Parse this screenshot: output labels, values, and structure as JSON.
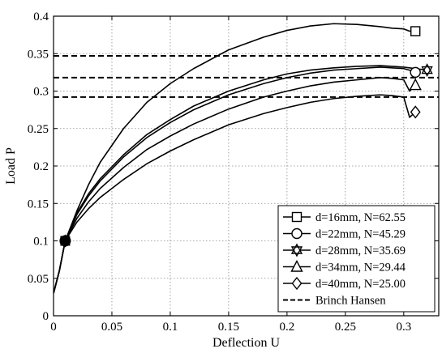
{
  "chart_data": {
    "type": "line",
    "xlabel": "Deflection U",
    "ylabel": "Load P",
    "xlim": [
      0,
      0.33
    ],
    "ylim": [
      0,
      0.4
    ],
    "xticks": [
      "0",
      "0.05",
      "0.1",
      "0.15",
      "0.2",
      "0.25",
      "0.3"
    ],
    "yticks": [
      "0",
      "0.05",
      "0.1",
      "0.15",
      "0.2",
      "0.25",
      "0.3",
      "0.35",
      "0.4"
    ],
    "grid": true,
    "legend_position": "bottom-right",
    "series": [
      {
        "name": "d=16mm, N=62.55",
        "marker": "square",
        "x": [
          0,
          0.005,
          0.01,
          0.02,
          0.03,
          0.04,
          0.06,
          0.08,
          0.1,
          0.12,
          0.15,
          0.18,
          0.2,
          0.22,
          0.24,
          0.26,
          0.28,
          0.29,
          0.3,
          0.305,
          0.31
        ],
        "y": [
          0.03,
          0.06,
          0.1,
          0.14,
          0.175,
          0.205,
          0.25,
          0.285,
          0.31,
          0.33,
          0.355,
          0.372,
          0.381,
          0.387,
          0.39,
          0.389,
          0.386,
          0.384,
          0.383,
          0.38,
          0.38
        ]
      },
      {
        "name": "d=22mm, N=45.29",
        "marker": "circle",
        "x": [
          0,
          0.005,
          0.01,
          0.02,
          0.03,
          0.04,
          0.06,
          0.08,
          0.1,
          0.12,
          0.15,
          0.18,
          0.2,
          0.22,
          0.24,
          0.26,
          0.28,
          0.29,
          0.3,
          0.305,
          0.31
        ],
        "y": [
          0.03,
          0.06,
          0.1,
          0.135,
          0.16,
          0.18,
          0.212,
          0.238,
          0.258,
          0.275,
          0.295,
          0.31,
          0.318,
          0.324,
          0.328,
          0.33,
          0.332,
          0.331,
          0.33,
          0.328,
          0.325
        ]
      },
      {
        "name": "d=28mm, N=35.69",
        "marker": "star",
        "x": [
          0,
          0.005,
          0.01,
          0.02,
          0.03,
          0.04,
          0.06,
          0.08,
          0.1,
          0.12,
          0.15,
          0.18,
          0.2,
          0.22,
          0.24,
          0.26,
          0.28,
          0.29,
          0.3,
          0.31,
          0.32
        ],
        "y": [
          0.03,
          0.06,
          0.1,
          0.137,
          0.163,
          0.183,
          0.215,
          0.242,
          0.262,
          0.28,
          0.3,
          0.315,
          0.323,
          0.328,
          0.331,
          0.333,
          0.334,
          0.333,
          0.332,
          0.33,
          0.328
        ]
      },
      {
        "name": "d=34mm, N=29.44",
        "marker": "triangle",
        "x": [
          0,
          0.005,
          0.01,
          0.02,
          0.03,
          0.04,
          0.06,
          0.08,
          0.1,
          0.12,
          0.15,
          0.18,
          0.2,
          0.22,
          0.24,
          0.26,
          0.28,
          0.29,
          0.3,
          0.305,
          0.31
        ],
        "y": [
          0.03,
          0.06,
          0.1,
          0.13,
          0.152,
          0.17,
          0.198,
          0.222,
          0.24,
          0.256,
          0.276,
          0.292,
          0.3,
          0.307,
          0.312,
          0.315,
          0.318,
          0.317,
          0.315,
          0.3,
          0.308
        ]
      },
      {
        "name": "d=40mm, N=25.00",
        "marker": "diamond",
        "x": [
          0,
          0.005,
          0.01,
          0.02,
          0.03,
          0.04,
          0.06,
          0.08,
          0.1,
          0.12,
          0.15,
          0.18,
          0.2,
          0.22,
          0.24,
          0.26,
          0.28,
          0.29,
          0.3,
          0.305,
          0.31
        ],
        "y": [
          0.03,
          0.06,
          0.1,
          0.125,
          0.143,
          0.158,
          0.182,
          0.203,
          0.22,
          0.235,
          0.255,
          0.27,
          0.278,
          0.285,
          0.29,
          0.293,
          0.295,
          0.294,
          0.292,
          0.265,
          0.272
        ]
      }
    ],
    "reference_lines": {
      "name": "Brinch Hansen",
      "style": "dashed",
      "y": [
        0.347,
        0.318,
        0.292
      ]
    },
    "start_marker": {
      "x": 0.01,
      "y": 0.1
    }
  }
}
